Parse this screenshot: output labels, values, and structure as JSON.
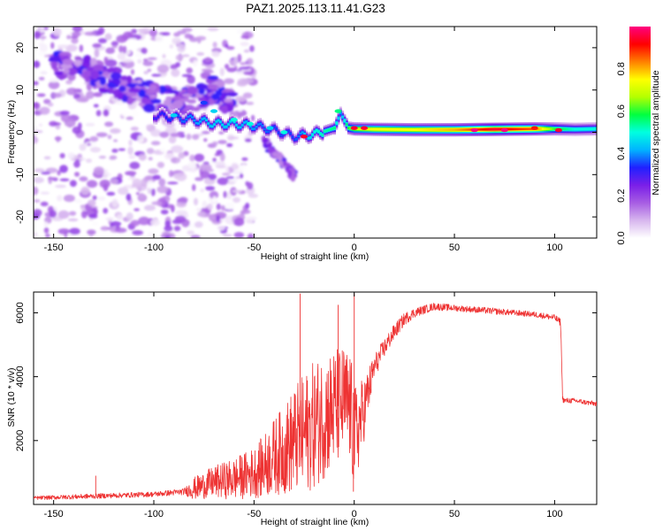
{
  "figure": {
    "title": "PAZ1.2025.113.11.41.G23"
  },
  "chart_data": [
    {
      "type": "heatmap",
      "name": "spectrogram",
      "xlabel": "Height of straight line (km)",
      "ylabel": "Frequency (Hz)",
      "xlim": [
        -160,
        121
      ],
      "ylim": [
        -25,
        25
      ],
      "xticks": [
        -150,
        -100,
        -50,
        0,
        50,
        100
      ],
      "yticks": [
        -20,
        -10,
        0,
        10,
        20
      ],
      "colorbar": {
        "label": "Normalized spectral amplitude",
        "range": [
          0,
          1
        ],
        "ticks": [
          "0.0",
          "0.2",
          "0.4",
          "0.6",
          "0.8"
        ],
        "colormap": [
          "#ffffff",
          "#d7b6ee",
          "#a75de3",
          "#7a1fe8",
          "#2020ff",
          "#00b4ff",
          "#00ffe0",
          "#00ff40",
          "#b4ff00",
          "#ffff00",
          "#ff8000",
          "#ff0000",
          "#ff0080"
        ]
      },
      "ridge": {
        "description": "dominant frequency track",
        "x_km": [
          -100,
          -90,
          -80,
          -70,
          -60,
          -50,
          -40,
          -30,
          -20,
          -10,
          -7,
          -3,
          0,
          10,
          30,
          50,
          70,
          90,
          100,
          110,
          121
        ],
        "freq_hz": [
          4,
          3.5,
          3,
          2,
          2,
          1.5,
          0.5,
          -1,
          -0.5,
          1,
          4.5,
          1,
          0.8,
          0.7,
          0.6,
          0.6,
          0.7,
          0.8,
          0.8,
          0.7,
          0.8
        ],
        "amplitude": [
          0.3,
          0.35,
          0.4,
          0.45,
          0.45,
          0.4,
          0.35,
          0.35,
          0.5,
          0.55,
          0.4,
          0.6,
          0.7,
          0.75,
          0.75,
          0.8,
          0.95,
          0.85,
          0.6,
          0.5,
          0.5
        ]
      },
      "upper_branch": {
        "description": "decreasing frequency branch",
        "x_km": [
          -150,
          -140,
          -130,
          -120,
          -110,
          -100,
          -90,
          -80,
          -70,
          -60
        ],
        "freq_hz": [
          16,
          16,
          14,
          12,
          10,
          8,
          7,
          8,
          10,
          6
        ]
      }
    },
    {
      "type": "line",
      "name": "snr",
      "xlabel": "Height of straight line (km)",
      "ylabel": "SNR (10 * v/v)",
      "xlim": [
        -160,
        121
      ],
      "ylim": [
        0,
        6650
      ],
      "xticks": [
        -150,
        -100,
        -50,
        0,
        50,
        100
      ],
      "yticks": [
        2000,
        4000,
        6000
      ],
      "color": "#ee3333",
      "envelope": {
        "x_km": [
          -160,
          -130,
          -100,
          -85,
          -80,
          -70,
          -60,
          -50,
          -45,
          -40,
          -35,
          -30,
          -25,
          -20,
          -15,
          -10,
          -5,
          -2,
          0,
          5,
          10,
          15,
          20,
          25,
          30,
          40,
          50,
          60,
          70,
          80,
          90,
          100,
          103,
          104,
          105,
          110,
          115,
          121
        ],
        "center": [
          200,
          260,
          320,
          400,
          500,
          700,
          800,
          1000,
          1200,
          1500,
          1700,
          2000,
          2200,
          2500,
          2800,
          3000,
          3200,
          3000,
          2000,
          3000,
          4300,
          4900,
          5400,
          5800,
          6000,
          6200,
          6150,
          6100,
          6050,
          6000,
          5950,
          5850,
          5700,
          3300,
          3250,
          3250,
          3200,
          3150
        ],
        "spread": [
          60,
          80,
          80,
          100,
          350,
          500,
          650,
          800,
          1000,
          1200,
          1400,
          1700,
          1900,
          2000,
          2000,
          1900,
          1800,
          1800,
          1700,
          1000,
          400,
          300,
          250,
          200,
          150,
          120,
          100,
          100,
          100,
          90,
          90,
          100,
          120,
          100,
          90,
          80,
          80,
          80
        ]
      },
      "spikes": {
        "x_km": [
          -129,
          -27,
          0,
          -8
        ],
        "y": [
          900,
          6600,
          6600,
          6250
        ]
      }
    }
  ]
}
